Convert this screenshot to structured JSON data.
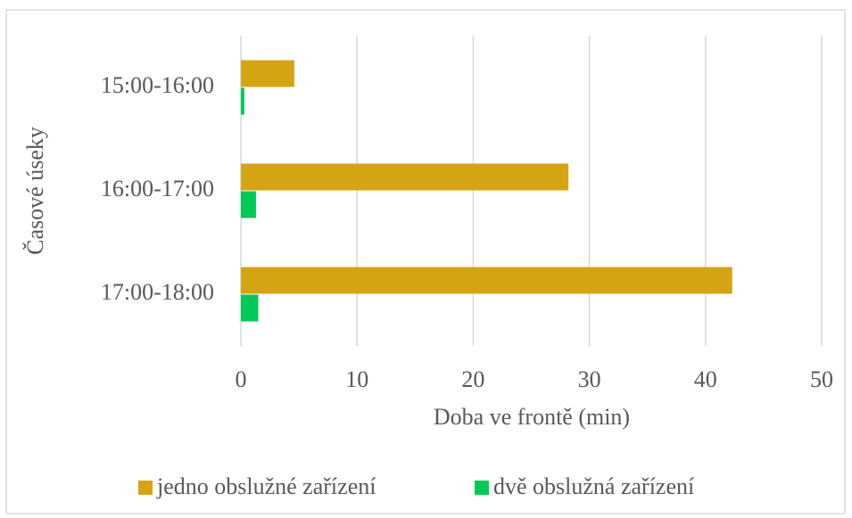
{
  "chart_data": {
    "type": "hbar",
    "categories": [
      "15:00-16:00",
      "16:00-17:00",
      "17:00-18:00"
    ],
    "series": [
      {
        "name": "jedno obslužné zařízení",
        "color": "#d4a414",
        "values": [
          4.6,
          28.2,
          42.3
        ]
      },
      {
        "name": "dvě obslužná zařízení",
        "color": "#00c957",
        "values": [
          0.3,
          1.3,
          1.5
        ]
      }
    ],
    "xlabel": "Doba ve frontě (min)",
    "ylabel": "Časové úseky",
    "xlim": [
      0,
      50
    ],
    "xticks": [
      0,
      10,
      20,
      30,
      40,
      50
    ],
    "grid": true,
    "legend": "bottom"
  }
}
